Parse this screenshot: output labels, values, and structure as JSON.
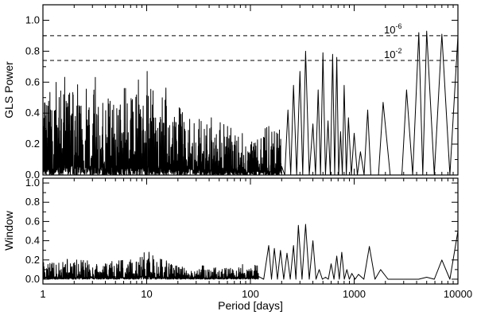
{
  "chart_data": [
    {
      "panel": "top",
      "type": "line",
      "title": "",
      "xlabel": "",
      "ylabel": "GLS Power",
      "xscale": "log",
      "xlim": [
        1,
        10000
      ],
      "ylim": [
        0,
        1.1
      ],
      "grid": false,
      "yticks": [
        "0.0",
        "0.2",
        "0.4",
        "0.6",
        "0.8",
        "1.0"
      ],
      "noise_envelope": {
        "x": [
          1,
          1.3,
          1.8,
          2.5,
          3.5,
          5,
          7,
          10,
          14,
          20,
          30,
          45,
          70,
          100,
          150,
          200
        ],
        "y": [
          0.55,
          0.53,
          0.58,
          0.6,
          0.55,
          0.5,
          0.5,
          0.6,
          0.52,
          0.45,
          0.38,
          0.32,
          0.26,
          0.22,
          0.28,
          0.33
        ]
      },
      "peaks": {
        "x": [
          170,
          200,
          230,
          260,
          300,
          340,
          400,
          450,
          500,
          560,
          620,
          680,
          740,
          800,
          880,
          1000,
          1150,
          1350,
          1550,
          1900,
          2600,
          3200,
          4200,
          5000,
          7000,
          10000
        ],
        "y": [
          0.32,
          0.35,
          0.42,
          0.58,
          0.67,
          0.8,
          0.33,
          0.55,
          0.79,
          0.35,
          0.78,
          0.76,
          0.28,
          0.58,
          0.37,
          0.27,
          0.15,
          0.42,
          0.0,
          0.47,
          0.0,
          0.55,
          0.92,
          0.93,
          0.91,
          0.9
        ]
      },
      "thresholds": [
        {
          "y": 0.9,
          "label_base": "10",
          "label_exp": "-6"
        },
        {
          "y": 0.74,
          "label_base": "10",
          "label_exp": "-2"
        }
      ]
    },
    {
      "panel": "bottom",
      "type": "line",
      "title": "",
      "xlabel": "Period [days]",
      "ylabel": "Window",
      "xscale": "log",
      "xlim": [
        1,
        10000
      ],
      "ylim": [
        -0.05,
        1.05
      ],
      "grid": false,
      "yticks": [
        "0.0",
        "0.2",
        "0.4",
        "0.6",
        "0.8",
        "1.0"
      ],
      "xticks": [
        "1",
        "10",
        "100",
        "1000",
        "10000"
      ],
      "noise_envelope": {
        "x": [
          1,
          2,
          4,
          7,
          9,
          10,
          12,
          20,
          40,
          80,
          120
        ],
        "y": [
          0.2,
          0.18,
          0.16,
          0.18,
          0.3,
          0.27,
          0.2,
          0.14,
          0.12,
          0.13,
          0.18
        ]
      },
      "peaks": {
        "x": [
          150,
          170,
          195,
          225,
          260,
          290,
          340,
          400,
          460,
          530,
          600,
          680,
          760,
          850,
          950,
          1100,
          1400,
          1800,
          2500,
          3500,
          5000,
          7000,
          10000
        ],
        "y": [
          0.35,
          0.32,
          0.3,
          0.27,
          0.35,
          0.56,
          0.57,
          0.4,
          0.1,
          0.02,
          0.16,
          0.24,
          0.28,
          0.1,
          0.06,
          0.05,
          0.34,
          0.1,
          0.0,
          0.0,
          0.02,
          0.2,
          0.5
        ]
      }
    }
  ]
}
